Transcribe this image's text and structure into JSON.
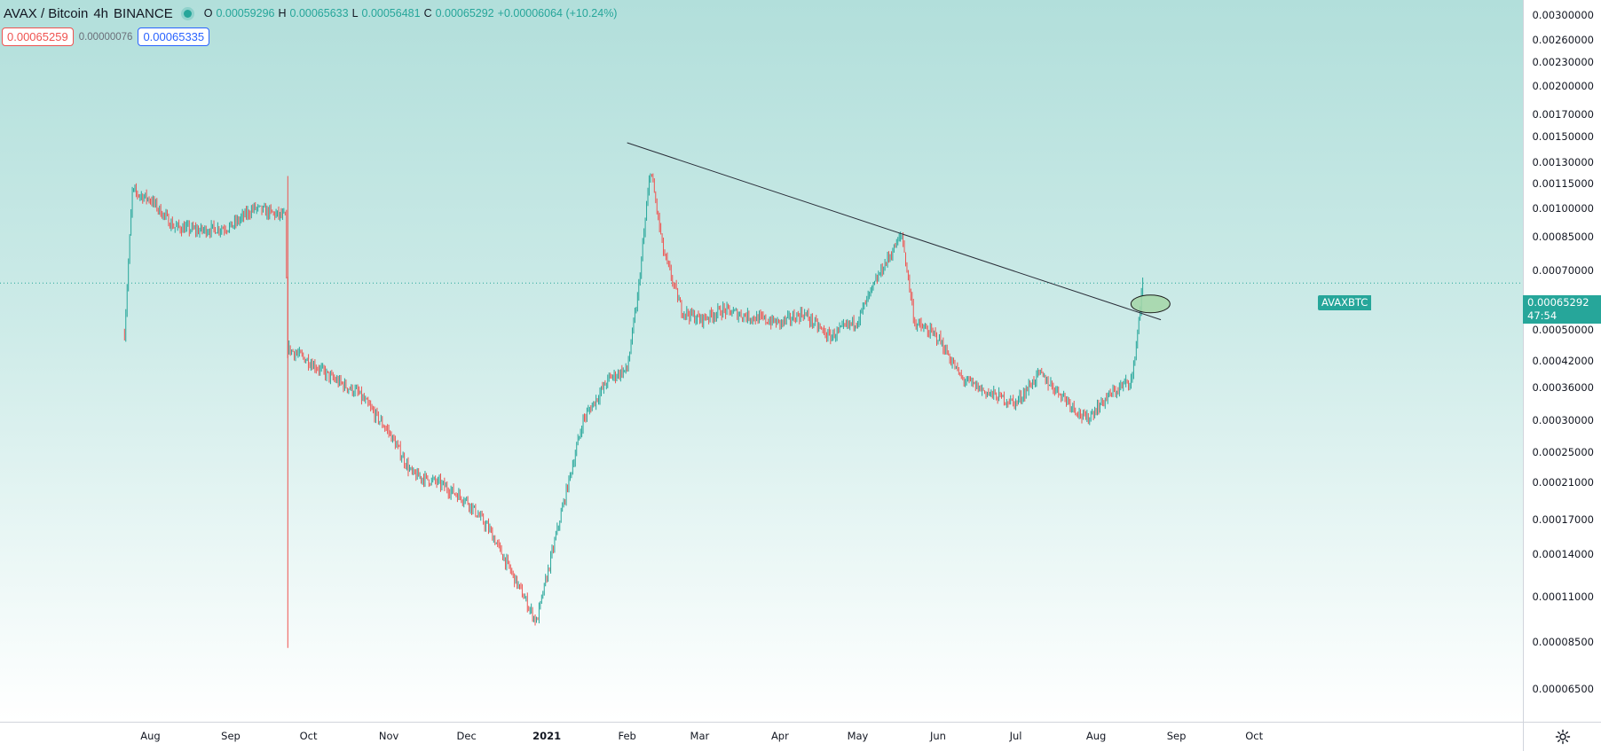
{
  "legend": {
    "symbol": "AVAX / Bitcoin",
    "interval": "4h",
    "exchange": "BINANCE",
    "open_label": "O",
    "open": "0.00059296",
    "high_label": "H",
    "high": "0.00065633",
    "low_label": "L",
    "low": "0.00056481",
    "close_label": "C",
    "close": "0.00065292",
    "change": "+0.00006064 (+10.24%)"
  },
  "trade": {
    "sell_price": "0.00065259",
    "spread": "0.00000076",
    "buy_price": "0.00065335"
  },
  "price_tag": {
    "symbol": "AVAXBTC",
    "price": "0.00065292",
    "countdown": "47:54"
  },
  "colors": {
    "up": "#26a69a",
    "down": "#ef5350",
    "trendline": "#2a2e39",
    "background_top": "#b2dfdb"
  },
  "price_axis": {
    "scale": "log",
    "ticks": [
      "0.00300000",
      "0.00260000",
      "0.00230000",
      "0.00200000",
      "0.00170000",
      "0.00150000",
      "0.00130000",
      "0.00115000",
      "0.00100000",
      "0.00085000",
      "0.00070000",
      "0.00050000",
      "0.00042000",
      "0.00036000",
      "0.00030000",
      "0.00025000",
      "0.00021000",
      "0.00017000",
      "0.00014000",
      "0.00011000",
      "0.00008500",
      "0.00006500"
    ]
  },
  "time_axis": {
    "ticks": [
      {
        "label": "Aug",
        "emphasis": false
      },
      {
        "label": "Sep",
        "emphasis": false
      },
      {
        "label": "Oct",
        "emphasis": false
      },
      {
        "label": "Nov",
        "emphasis": false
      },
      {
        "label": "Dec",
        "emphasis": false
      },
      {
        "label": "2021",
        "emphasis": true
      },
      {
        "label": "Feb",
        "emphasis": false
      },
      {
        "label": "Mar",
        "emphasis": false
      },
      {
        "label": "Apr",
        "emphasis": false
      },
      {
        "label": "May",
        "emphasis": false
      },
      {
        "label": "Jun",
        "emphasis": false
      },
      {
        "label": "Jul",
        "emphasis": false
      },
      {
        "label": "Aug",
        "emphasis": false
      },
      {
        "label": "Sep",
        "emphasis": false
      },
      {
        "label": "Oct",
        "emphasis": false
      }
    ]
  },
  "chart_data": {
    "type": "line",
    "scale": "log",
    "x": [
      "2020-07-22",
      "2020-07-25",
      "2020-08-01",
      "2020-08-10",
      "2020-08-20",
      "2020-09-01",
      "2020-09-10",
      "2020-09-22",
      "2020-09-23",
      "2020-10-01",
      "2020-10-10",
      "2020-10-20",
      "2020-11-01",
      "2020-11-10",
      "2020-11-20",
      "2020-12-01",
      "2020-12-10",
      "2020-12-20",
      "2020-12-28",
      "2021-01-05",
      "2021-01-15",
      "2021-01-25",
      "2021-02-01",
      "2021-02-05",
      "2021-02-10",
      "2021-02-15",
      "2021-02-22",
      "2021-03-01",
      "2021-03-10",
      "2021-03-20",
      "2021-04-01",
      "2021-04-10",
      "2021-04-20",
      "2021-05-01",
      "2021-05-10",
      "2021-05-18",
      "2021-05-23",
      "2021-06-01",
      "2021-06-10",
      "2021-06-20",
      "2021-07-01",
      "2021-07-10",
      "2021-07-20",
      "2021-07-28",
      "2021-08-05",
      "2021-08-15",
      "2021-08-19"
    ],
    "series": [
      {
        "values": [
          0.00049,
          0.0011,
          0.00105,
          0.0009,
          0.00088,
          0.0009,
          0.001,
          0.00095,
          0.00045,
          0.00042,
          0.00038,
          0.00035,
          0.00028,
          0.00022,
          0.00021,
          0.00019,
          0.00016,
          0.00012,
          9.5e-05,
          0.00016,
          0.0003,
          0.00038,
          0.0004,
          0.0006,
          0.00125,
          0.00078,
          0.00056,
          0.00053,
          0.00056,
          0.00054,
          0.00052,
          0.00055,
          0.00048,
          0.00053,
          0.0007,
          0.00086,
          0.00052,
          0.00048,
          0.00038,
          0.00035,
          0.00033,
          0.00039,
          0.00034,
          0.0003,
          0.00034,
          0.00038,
          0.00065
        ]
      }
    ],
    "trendline": {
      "from": {
        "x": "2021-02-01",
        "y": 0.00145
      },
      "to": {
        "x": "2021-08-26",
        "y": 0.00053
      }
    },
    "highlight_ellipse": {
      "x": "2021-08-22",
      "y": 0.00058
    },
    "current_price": 0.00065292,
    "ylim": [
      5.5e-05,
      0.0032
    ]
  }
}
